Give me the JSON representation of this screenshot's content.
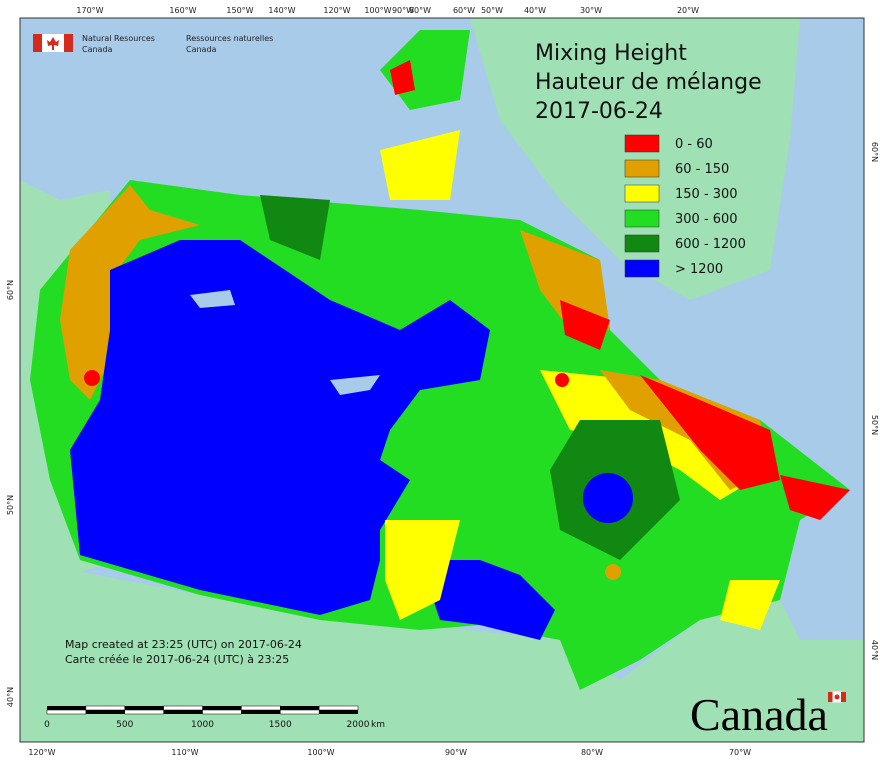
{
  "header": {
    "agency_en": [
      "Natural Resources",
      "Canada"
    ],
    "agency_fr": [
      "Ressources naturelles",
      "Canada"
    ]
  },
  "title": {
    "line1": "Mixing Height",
    "line2": "Hauteur de mélange",
    "date": "2017-06-24"
  },
  "legend": [
    {
      "label": "0 - 60",
      "color": "#ff0000"
    },
    {
      "label": "60 - 150",
      "color": "#e0a000"
    },
    {
      "label": "150 - 300",
      "color": "#ffff00"
    },
    {
      "label": "300 - 600",
      "color": "#22dd22"
    },
    {
      "label": "600 - 1200",
      "color": "#118811"
    },
    {
      "label": "> 1200",
      "color": "#0000ff"
    }
  ],
  "top_labels": [
    "170°W",
    "160°W",
    "150°W",
    "140°W",
    "120°W",
    "100°W",
    "90°W",
    "80°W",
    "60°W",
    "50°W",
    "40°W",
    "30°W",
    "20°W"
  ],
  "bottom_labels": [
    "120°W",
    "110°W",
    "100°W",
    "90°W",
    "80°W",
    "70°W"
  ],
  "left_labels": [
    "60°N",
    "50°N",
    "40°N"
  ],
  "right_labels": [
    "60°N",
    "50°N",
    "40°N"
  ],
  "scale_bar": {
    "ticks": [
      "0",
      "500",
      "1000",
      "1500",
      "2000"
    ],
    "unit": "km"
  },
  "footer": {
    "created_en": "Map created at 23:25 (UTC) on 2017-06-24",
    "created_fr": "Carte créée le 2017-06-24 (UTC) à 23:25"
  },
  "wordmark": "Canada"
}
